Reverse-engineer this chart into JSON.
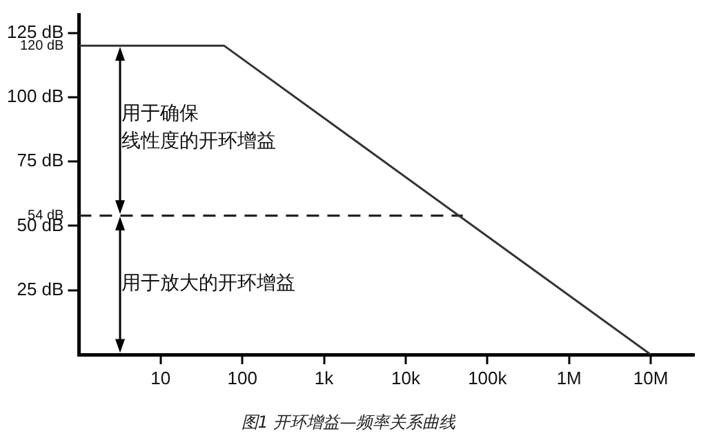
{
  "chart_data": {
    "type": "line",
    "title": "图1 开环增益—频率关系曲线",
    "x": [
      1,
      60,
      10000000
    ],
    "series": [
      {
        "color": "#333333",
        "values": [
          120,
          120,
          0
        ]
      },
      {
        "color": "#222222",
        "x": [
          1,
          50000
        ],
        "values": [
          54,
          54
        ],
        "line_style": "dashed"
      }
    ],
    "log": "x",
    "xlim": [
      1,
      34000000
    ],
    "xticks": [
      10,
      100,
      {
        "value": 1000,
        "label": "1k"
      },
      {
        "value": 10000,
        "label": "10k"
      },
      {
        "value": 100000,
        "label": "100k"
      },
      {
        "value": 1000000,
        "label": "1M"
      },
      {
        "value": 10000000,
        "label": "10M"
      }
    ],
    "ylim": [
      0,
      132
    ],
    "yticks": [
      {
        "value": 25,
        "label": "25 dB"
      },
      {
        "value": 50,
        "label": "50 dB"
      },
      {
        "value": 54,
        "label": "54 dB"
      },
      {
        "value": 75,
        "label": "75 dB"
      },
      {
        "value": 100,
        "label": "100 dB"
      },
      {
        "value": 120,
        "label": "120 dB"
      },
      {
        "value": 125,
        "label": "125 dB"
      }
    ],
    "annotations": [
      "用于确保",
      "线性度的开环增益",
      "用于放大的开环增益"
    ],
    "grid": false,
    "legend": false,
    "line_style": "solid"
  }
}
